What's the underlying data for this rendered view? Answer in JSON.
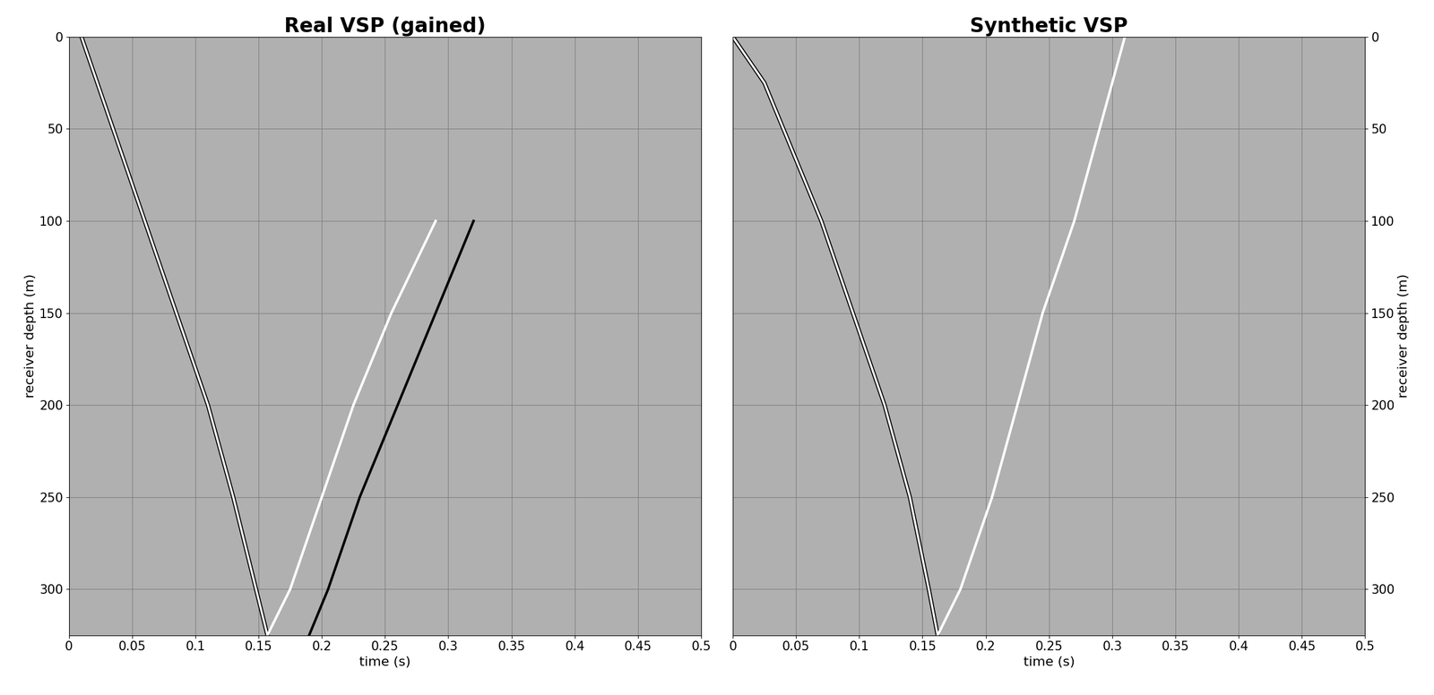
{
  "chart_data": [
    {
      "type": "line",
      "title": "Real VSP (gained)",
      "xlabel": "time (s)",
      "ylabel": "receiver depth (m)",
      "xlim": [
        0,
        0.5
      ],
      "ylim": [
        325,
        0
      ],
      "xticks": [
        0,
        0.05,
        0.1,
        0.15,
        0.2,
        0.25,
        0.3,
        0.35,
        0.4,
        0.45,
        0.5
      ],
      "yticks": [
        0,
        50,
        100,
        150,
        200,
        250,
        300
      ],
      "grid": true,
      "series": [
        {
          "color": "#000000",
          "x": [
            0.01,
            0.035,
            0.06,
            0.085,
            0.11,
            0.13,
            0.148,
            0.157
          ],
          "values": [
            0,
            50,
            100,
            150,
            200,
            250,
            300,
            325
          ]
        },
        {
          "color": "#ffffff",
          "x": [
            0.157,
            0.175,
            0.2,
            0.225,
            0.255,
            0.29
          ],
          "values": [
            325,
            300,
            250,
            200,
            150,
            100
          ]
        },
        {
          "color": "#000000",
          "x": [
            0.19,
            0.205,
            0.23,
            0.26,
            0.29,
            0.32
          ],
          "values": [
            325,
            300,
            250,
            200,
            150,
            100
          ]
        }
      ]
    },
    {
      "type": "line",
      "title": "Synthetic VSP",
      "xlabel": "time (s)",
      "ylabel": "receiver depth (m)",
      "xlim": [
        0,
        0.5
      ],
      "ylim": [
        325,
        0
      ],
      "xticks": [
        0,
        0.05,
        0.1,
        0.15,
        0.2,
        0.25,
        0.3,
        0.35,
        0.4,
        0.45,
        0.5
      ],
      "yticks": [
        0,
        50,
        100,
        150,
        200,
        250,
        300
      ],
      "grid": true,
      "series": [
        {
          "color": "#000000",
          "x": [
            0.0,
            0.025,
            0.04,
            0.07,
            0.095,
            0.12,
            0.14,
            0.155,
            0.162
          ],
          "values": [
            0,
            25,
            50,
            100,
            150,
            200,
            250,
            300,
            325
          ]
        },
        {
          "color": "#ffffff",
          "x": [
            0.162,
            0.18,
            0.205,
            0.225,
            0.245,
            0.27,
            0.29,
            0.31
          ],
          "values": [
            325,
            300,
            250,
            200,
            150,
            100,
            50,
            0
          ]
        }
      ]
    }
  ]
}
